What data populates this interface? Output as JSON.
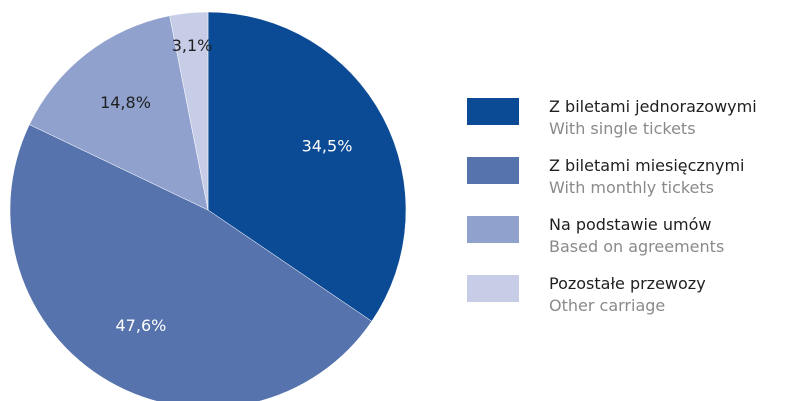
{
  "colors": {
    "single": "#0b4a94",
    "monthly": "#5673ae",
    "agreements": "#8fa1cc",
    "other": "#c7cde6",
    "label_light": "#ffffff",
    "label_dark": "#1f1f1f"
  },
  "chart_data": {
    "type": "pie",
    "title": "",
    "slices": [
      {
        "label_pl": "Z biletami jednorazowymi",
        "label_en": "With single tickets",
        "value": 34.5,
        "display": "34,5%",
        "color_key": "single",
        "label_color_key": "label_light"
      },
      {
        "label_pl": "Z biletami miesięcznymi",
        "label_en": "With monthly tickets",
        "value": 47.6,
        "display": "47,6%",
        "color_key": "monthly",
        "label_color_key": "label_light"
      },
      {
        "label_pl": "Na podstawie umów",
        "label_en": "Based on agreements",
        "value": 14.8,
        "display": "14,8%",
        "color_key": "agreements",
        "label_color_key": "label_dark"
      },
      {
        "label_pl": "Pozostałe przewozy",
        "label_en": "Other carriage",
        "value": 3.1,
        "display": "3,1%",
        "color_key": "other",
        "label_color_key": "label_dark"
      }
    ],
    "legend_position": "right"
  }
}
